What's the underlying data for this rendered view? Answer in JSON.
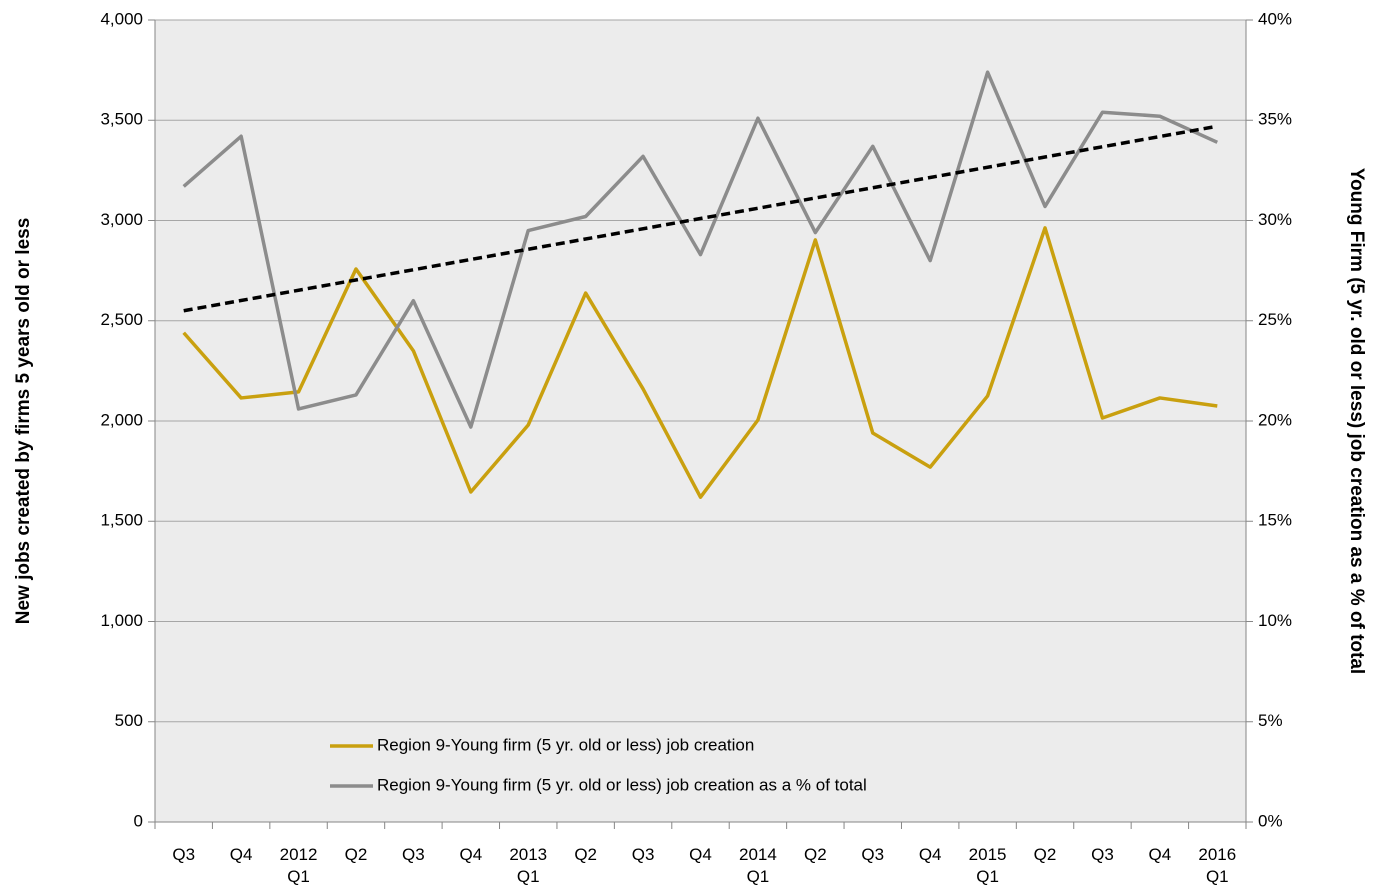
{
  "chart_data": {
    "type": "line",
    "y_label": "New jobs created by firms 5 years old or less",
    "y2_label": "Young Firm (5 yr. old or less) job creation as a % of total",
    "categories": [
      "Q3",
      "Q4",
      "2012\nQ1",
      "Q2",
      "Q3",
      "Q4",
      "2013\nQ1",
      "Q2",
      "Q3",
      "Q4",
      "2014\nQ1",
      "Q2",
      "Q3",
      "Q4",
      "2015\nQ1",
      "Q2",
      "Q3",
      "Q4",
      "2016\nQ1"
    ],
    "series": [
      {
        "name": "Region 9-Young firm (5 yr. old or less) job creation",
        "color": "#c9a00f",
        "values": [
          2440,
          2115,
          2145,
          2758,
          2350,
          1646,
          1980,
          2638,
          2160,
          1620,
          2005,
          2903,
          1940,
          1770,
          2125,
          2963,
          2015,
          2115,
          2075
        ]
      },
      {
        "name": "Region 9-Young firm (5 yr. old or less) job creation as a % of total",
        "color": "#8c8c8c",
        "axis": "y2",
        "values": [
          31.7,
          34.2,
          20.6,
          21.3,
          26.0,
          19.7,
          29.5,
          30.2,
          33.2,
          28.3,
          35.1,
          29.4,
          33.7,
          28.0,
          37.4,
          30.7,
          35.4,
          35.2,
          33.9
        ]
      }
    ],
    "trendline": {
      "values": [
        25.5,
        34.7
      ],
      "color": "#000000",
      "axis": "y2"
    },
    "ylim": [
      0,
      4000
    ],
    "yticks": [
      0,
      500,
      {
        "value": 1000,
        "label": "1,000"
      },
      {
        "value": 1500,
        "label": "1,500"
      },
      {
        "value": 2000,
        "label": "2,000"
      },
      {
        "value": 2500,
        "label": "2,500"
      },
      {
        "value": 3000,
        "label": "3,000"
      },
      {
        "value": 3500,
        "label": "3,500"
      },
      {
        "value": 4000,
        "label": "4,000"
      }
    ],
    "y2lim": [
      0,
      40
    ],
    "y2ticks": [
      {
        "value": 0,
        "label": "0%"
      },
      {
        "value": 5,
        "label": "5%"
      },
      {
        "value": 10,
        "label": "10%"
      },
      {
        "value": 15,
        "label": "15%"
      },
      {
        "value": 20,
        "label": "20%"
      },
      {
        "value": 25,
        "label": "25%"
      },
      {
        "value": 30,
        "label": "30%"
      },
      {
        "value": 35,
        "label": "35%"
      },
      {
        "value": 40,
        "label": "40%"
      }
    ],
    "grid": true
  }
}
